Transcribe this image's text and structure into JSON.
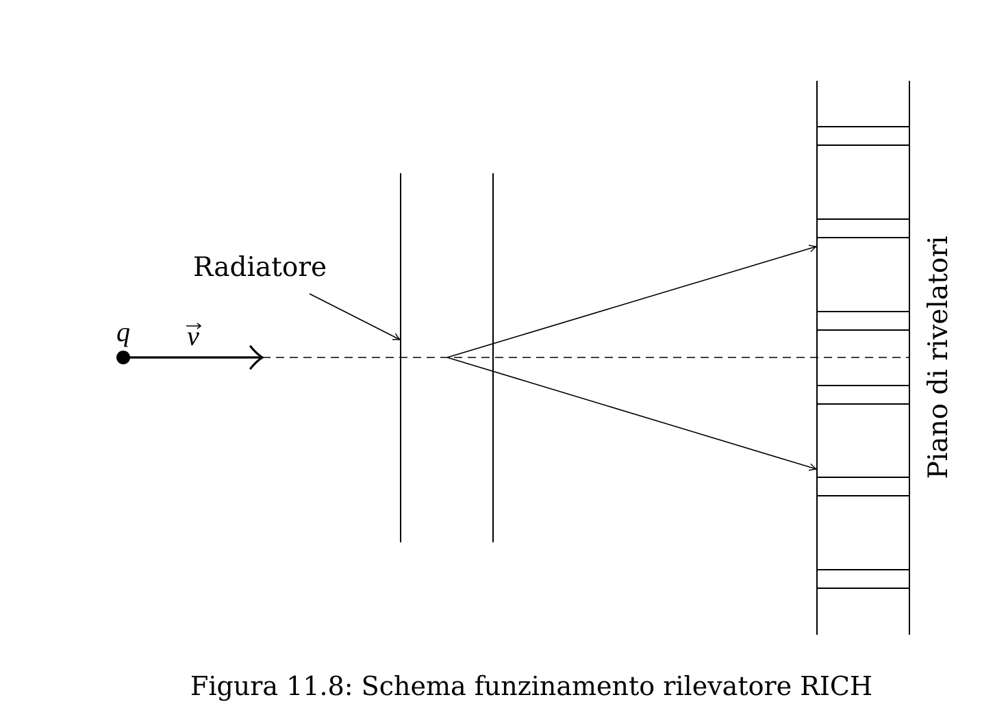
{
  "labels": {
    "charge": "q",
    "velocity": "v",
    "radiator": "Radiatore",
    "detector_plane": "Piano di rivelatori"
  },
  "caption": "Figura 11.8: Schema funzinamento rilevatore RICH",
  "colors": {
    "stroke": "#000000",
    "background": "#ffffff"
  }
}
